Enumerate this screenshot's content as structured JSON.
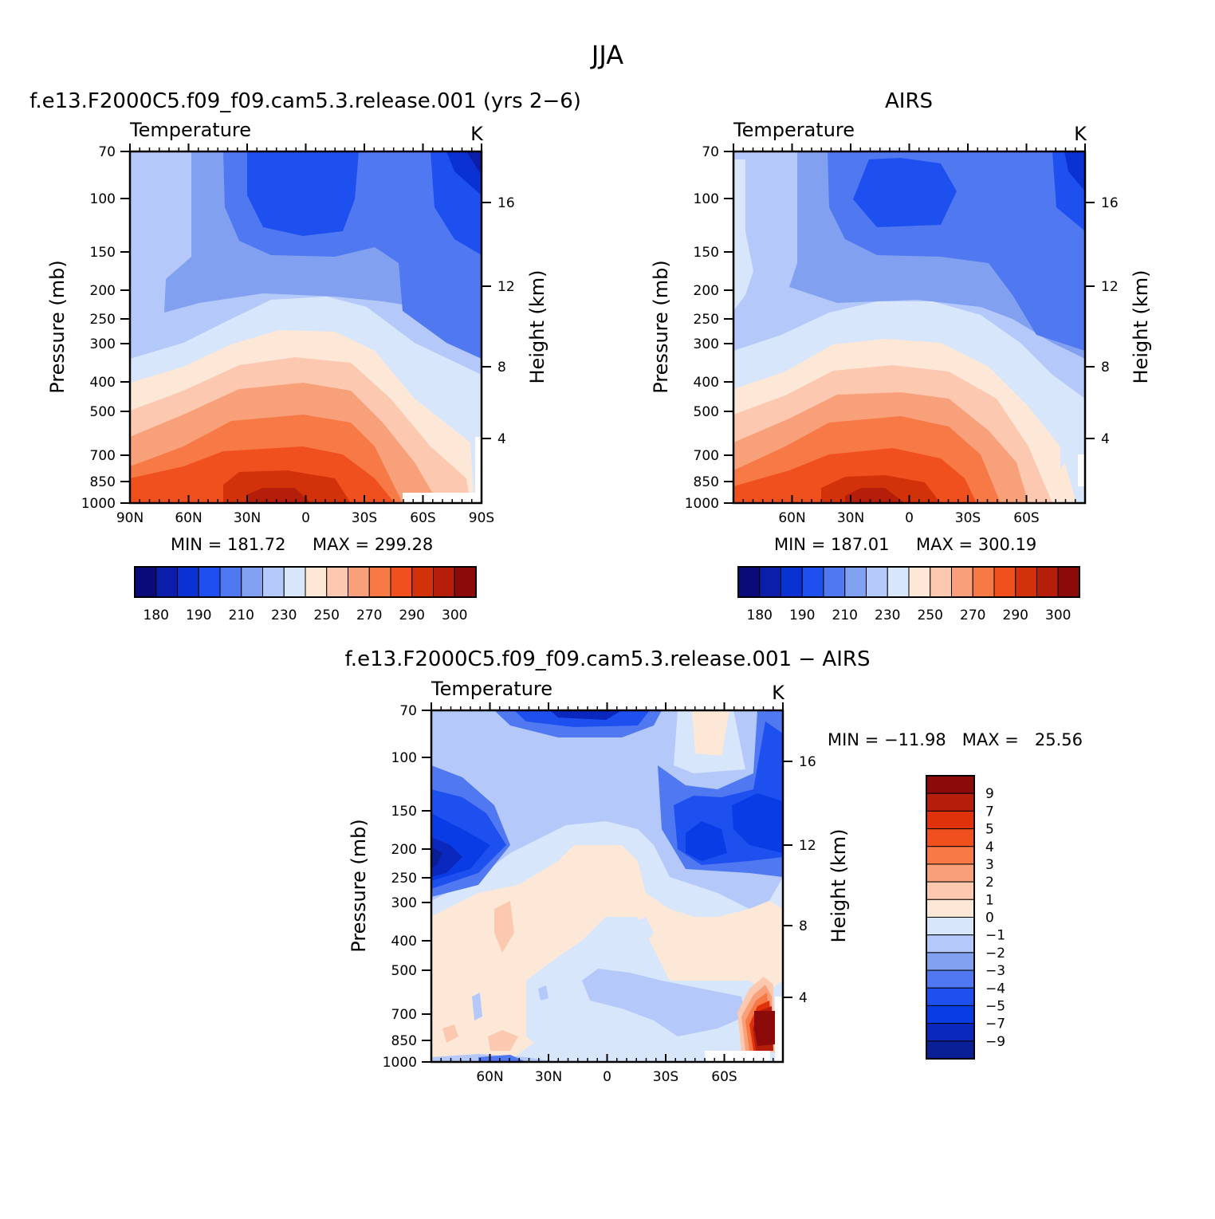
{
  "figure": {
    "title": "JJA"
  },
  "colors": {
    "abs_levels": [
      "#0a0a78",
      "#0a1eaa",
      "#0a32d2",
      "#1e50f0",
      "#5078f0",
      "#82a0f0",
      "#b4c8fa",
      "#d7e6fa",
      "#fde8d8",
      "#fcc8b0",
      "#f8a07a",
      "#f77a46",
      "#f0501e",
      "#d2320a",
      "#b41e0a",
      "#8c0a0a"
    ],
    "diff_levels": [
      "#0a1e96",
      "#0a28be",
      "#0a3ce6",
      "#1e50f0",
      "#5078f0",
      "#82a0f0",
      "#b4c8fa",
      "#d7e6fa",
      "#fde8d8",
      "#fcc8b0",
      "#f8a07a",
      "#f77a46",
      "#f0501e",
      "#e0320a",
      "#b41e0a",
      "#8c0a0a"
    ]
  },
  "chart_data": [
    {
      "type": "heatmap",
      "title": "f.e13.F2000C5.f09_f09.cam5.3.release.001 (yrs 2−6)",
      "subtitle": "Temperature",
      "units": "K",
      "ylabel": "Pressure (mb)",
      "y2label": "Height (km)",
      "x_tick_labels": [
        "90N",
        "60N",
        "30N",
        "0",
        "30S",
        "60S",
        "90S"
      ],
      "y_tick_labels": [
        "70",
        "100",
        "150",
        "200",
        "250",
        "300",
        "400",
        "500",
        "700",
        "850",
        "1000"
      ],
      "y2_tick_labels": [
        "16",
        "12",
        "8",
        "4"
      ],
      "min_label": "MIN = 181.72",
      "max_label": "MAX = 299.28",
      "min": 181.72,
      "max": 299.28,
      "colorbar_labels": [
        "180",
        "190",
        "210",
        "230",
        "250",
        "270",
        "290",
        "300"
      ]
    },
    {
      "type": "heatmap",
      "title": "AIRS",
      "subtitle": "Temperature",
      "units": "K",
      "ylabel": "Pressure (mb)",
      "y2label": "Height (km)",
      "x_tick_labels": [
        "60N",
        "30N",
        "0",
        "30S",
        "60S"
      ],
      "y_tick_labels": [
        "70",
        "100",
        "150",
        "200",
        "250",
        "300",
        "400",
        "500",
        "700",
        "850",
        "1000"
      ],
      "y2_tick_labels": [
        "16",
        "12",
        "8",
        "4"
      ],
      "min_label": "MIN = 187.01",
      "max_label": "MAX = 300.19",
      "min": 187.01,
      "max": 300.19,
      "colorbar_labels": [
        "180",
        "190",
        "210",
        "230",
        "250",
        "270",
        "290",
        "300"
      ]
    },
    {
      "type": "heatmap",
      "title": "f.e13.F2000C5.f09_f09.cam5.3.release.001 − AIRS",
      "subtitle": "Temperature",
      "units": "K",
      "ylabel": "Pressure (mb)",
      "y2label": "Height (km)",
      "x_tick_labels": [
        "60N",
        "30N",
        "0",
        "30S",
        "60S"
      ],
      "y_tick_labels": [
        "70",
        "100",
        "150",
        "200",
        "250",
        "300",
        "400",
        "500",
        "700",
        "850",
        "1000"
      ],
      "y2_tick_labels": [
        "16",
        "12",
        "8",
        "4"
      ],
      "minmax_label": "MIN = −11.98   MAX =   25.56",
      "min": -11.98,
      "max": 25.56,
      "colorbar_labels": [
        "9",
        "7",
        "5",
        "4",
        "3",
        "2",
        "1",
        "0",
        "−1",
        "−2",
        "−3",
        "−4",
        "−5",
        "−7",
        "−9"
      ]
    }
  ]
}
